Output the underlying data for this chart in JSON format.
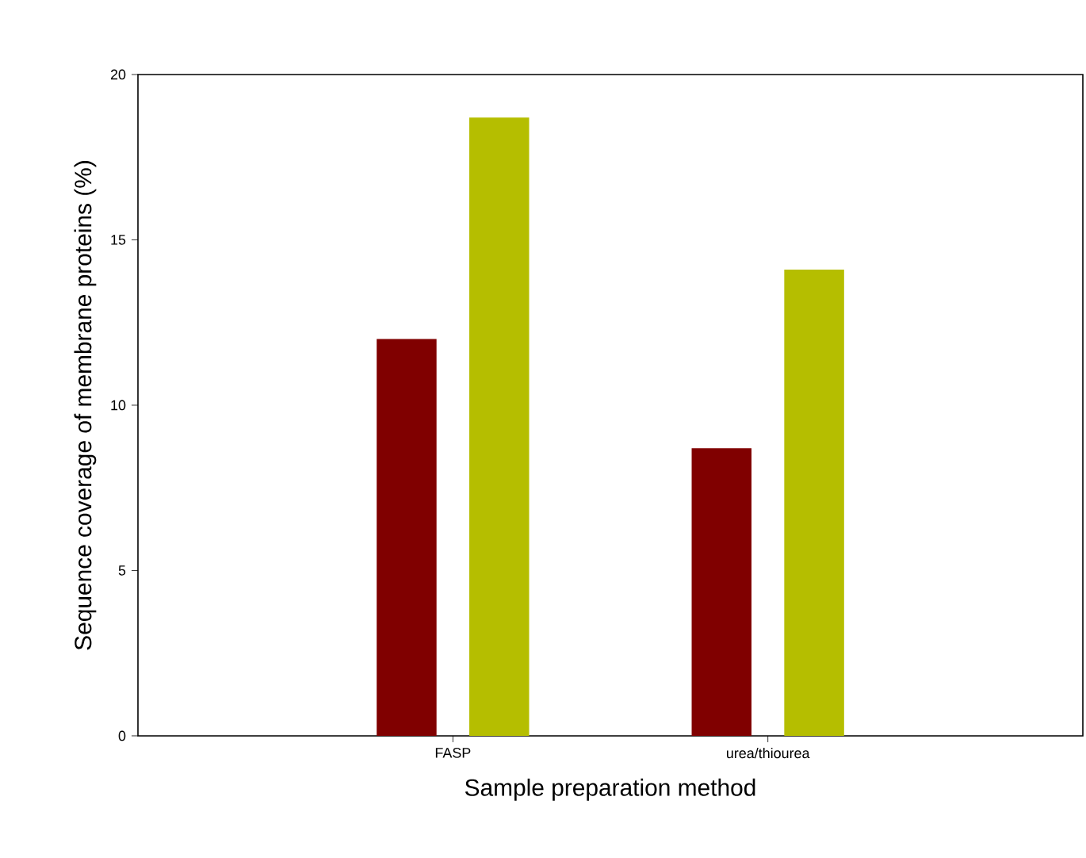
{
  "chart_data": {
    "type": "bar",
    "xlabel": "Sample preparation method",
    "ylabel": "Sequence coverage of membrane proteins (%)",
    "categories": [
      "FASP",
      "urea/thiourea"
    ],
    "series": [
      {
        "color": "#800000",
        "values": [
          12.0,
          8.7
        ]
      },
      {
        "color": "#b5be00",
        "values": [
          18.7,
          14.1
        ]
      }
    ],
    "ylim": [
      0,
      20
    ],
    "yticks": [
      0,
      5,
      10,
      15,
      20
    ]
  }
}
